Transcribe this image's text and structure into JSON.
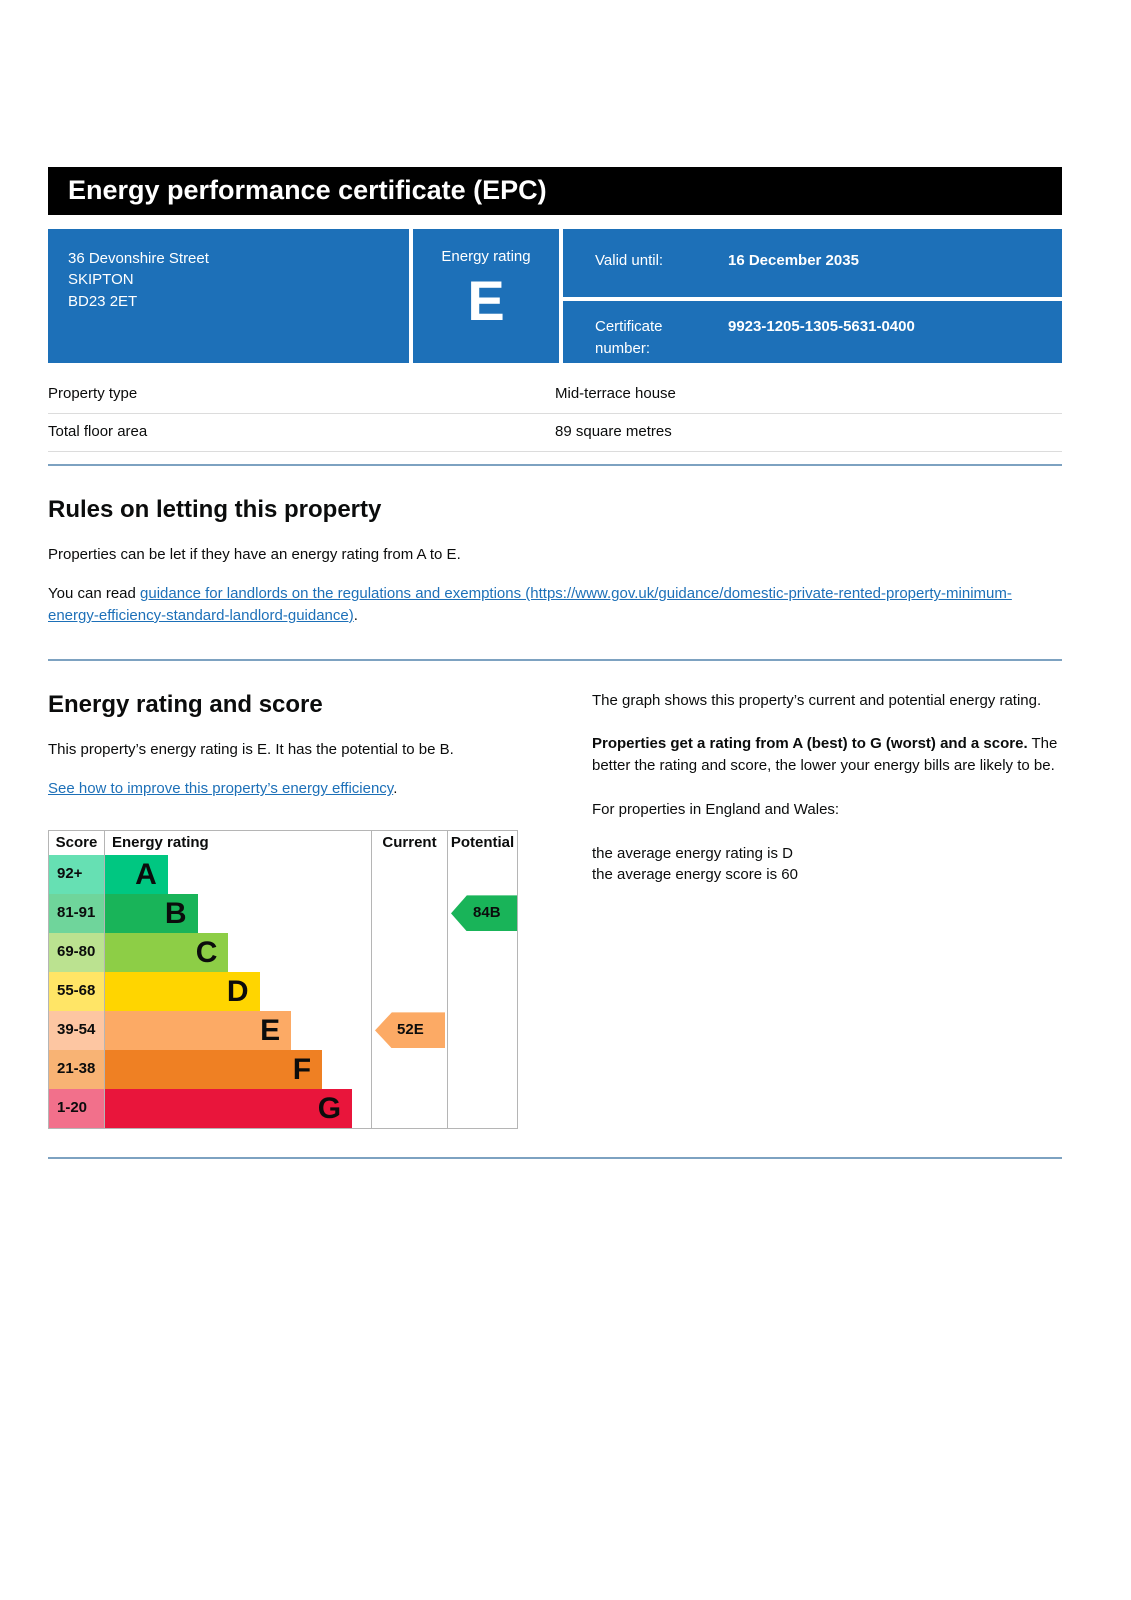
{
  "page": {
    "title": "Energy performance certificate (EPC)"
  },
  "summary": {
    "address_lines": [
      "36 Devonshire Street",
      "SKIPTON",
      "BD23 2ET"
    ],
    "energy_rating_label": "Energy rating",
    "energy_rating": "E",
    "valid_until_label": "Valid until:",
    "valid_until_value": "16 December 2035",
    "certificate_label": "Certificate number:",
    "certificate_value": "9923-1205-1305-5631-0400"
  },
  "property_details": {
    "rows": [
      {
        "label": "Property type",
        "value": "Mid-terrace house"
      },
      {
        "label": "Total floor area",
        "value": "89 square metres"
      }
    ]
  },
  "rules": {
    "heading": "Rules on letting this property",
    "para1": "Properties can be let if they have an energy rating from A to E.",
    "para2_prefix": "You can read ",
    "para2_link": "guidance for landlords on the regulations and exemptions (https://www.gov.uk/guidance/domestic-private-rented-property-minimum-energy-efficiency-standard-landlord-guidance)",
    "para2_suffix": "."
  },
  "rating_section": {
    "heading": "Energy rating and score",
    "para1": "This property’s energy rating is E. It has the potential to be B.",
    "improve_link": "See how to improve this property’s energy efficiency",
    "improve_suffix": ".",
    "right_para1": "The graph shows this property’s current and potential energy rating.",
    "right_para2_bold": "Properties get a rating from A (best) to G (worst) and a score.",
    "right_para2_rest": " The better the rating and score, the lower your energy bills are likely to be.",
    "right_para3": "For properties in England and Wales:",
    "right_line1": "the average energy rating is D",
    "right_line2": "the average energy score is 60"
  },
  "chart_data": {
    "type": "bar",
    "title": "Energy rating and score",
    "legend_position": "none",
    "headers": {
      "score": "Score",
      "rating": "Energy rating",
      "current": "Current",
      "potential": "Potential"
    },
    "bands": [
      {
        "band": "A",
        "score_range": "92+",
        "color": "#00c781",
        "tint": "#66e0b3",
        "width_pct": 23.6
      },
      {
        "band": "B",
        "score_range": "81-91",
        "color": "#19b459",
        "tint": "#6fd59b",
        "width_pct": 34.8
      },
      {
        "band": "C",
        "score_range": "69-80",
        "color": "#8dce46",
        "tint": "#bbe290",
        "width_pct": 46.4
      },
      {
        "band": "D",
        "score_range": "55-68",
        "color": "#ffd500",
        "tint": "#ffe566",
        "width_pct": 58.1
      },
      {
        "band": "E",
        "score_range": "39-54",
        "color": "#fcaa65",
        "tint": "#fdc6a2",
        "width_pct": 70.0
      },
      {
        "band": "F",
        "score_range": "21-38",
        "color": "#ef8023",
        "tint": "#f8b374",
        "width_pct": 81.6
      },
      {
        "band": "G",
        "score_range": "1-20",
        "color": "#e9153b",
        "tint": "#f2708b",
        "width_pct": 92.9
      }
    ],
    "current": {
      "score": "52",
      "band": "E",
      "color": "#fcaa65",
      "row_index": 4
    },
    "potential": {
      "score": "84",
      "band": "B",
      "color": "#19b459",
      "row_index": 1
    }
  },
  "colors": {
    "govuk_blue": "#1d70b8",
    "divider_blue": "#7da2c1",
    "header_black": "#000000"
  }
}
